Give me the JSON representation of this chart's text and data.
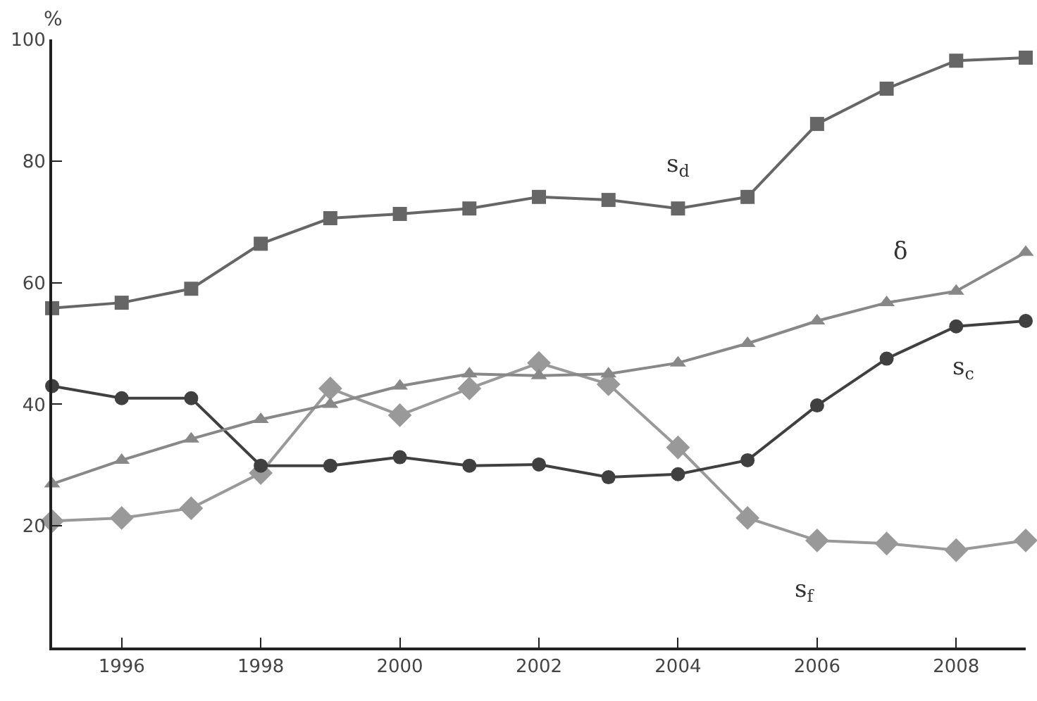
{
  "chart_data": {
    "type": "line",
    "ylabel": "%",
    "x": [
      1995,
      1996,
      1997,
      1998,
      1999,
      2000,
      2001,
      2002,
      2003,
      2004,
      2005,
      2006,
      2007,
      2008,
      2009
    ],
    "xlim": [
      1995,
      2009
    ],
    "xticks": [
      1996,
      1998,
      2000,
      2002,
      2004,
      2006,
      2008
    ],
    "ylim": [
      0,
      100
    ],
    "yticks": [
      20,
      40,
      60,
      80,
      100
    ],
    "grid": false,
    "legend": false,
    "line_style": "solid",
    "series": [
      {
        "name": "s$_{d}$",
        "color": "#666666",
        "marker": "square",
        "values": [
          55.8,
          56.7,
          59,
          66.4,
          70.6,
          71.3,
          72.2,
          74.1,
          73.6,
          72.2,
          74.1,
          86.1,
          91.9,
          96.5,
          97
        ]
      },
      {
        "name": "δ",
        "color": "#888888",
        "marker": "triangle",
        "values": [
          26.9,
          30.8,
          34.3,
          37.5,
          40,
          43,
          45,
          44.7,
          45,
          46.8,
          50,
          53.7,
          56.7,
          58.6,
          65
        ]
      },
      {
        "name": "s$_{c}$",
        "color": "#404040",
        "marker": "circle",
        "values": [
          43,
          41,
          41,
          29.9,
          29.9,
          31.3,
          29.9,
          30.1,
          28,
          28.5,
          30.8,
          39.8,
          47.5,
          52.8,
          53.7
        ]
      },
      {
        "name": "s$_{f}$",
        "color": "#999999",
        "marker": "diamond",
        "values": [
          20.8,
          21.3,
          22.9,
          28.7,
          42.6,
          38.2,
          42.6,
          46.8,
          43.3,
          32.9,
          21.3,
          17.6,
          17.1,
          16,
          17.6
        ]
      }
    ]
  }
}
